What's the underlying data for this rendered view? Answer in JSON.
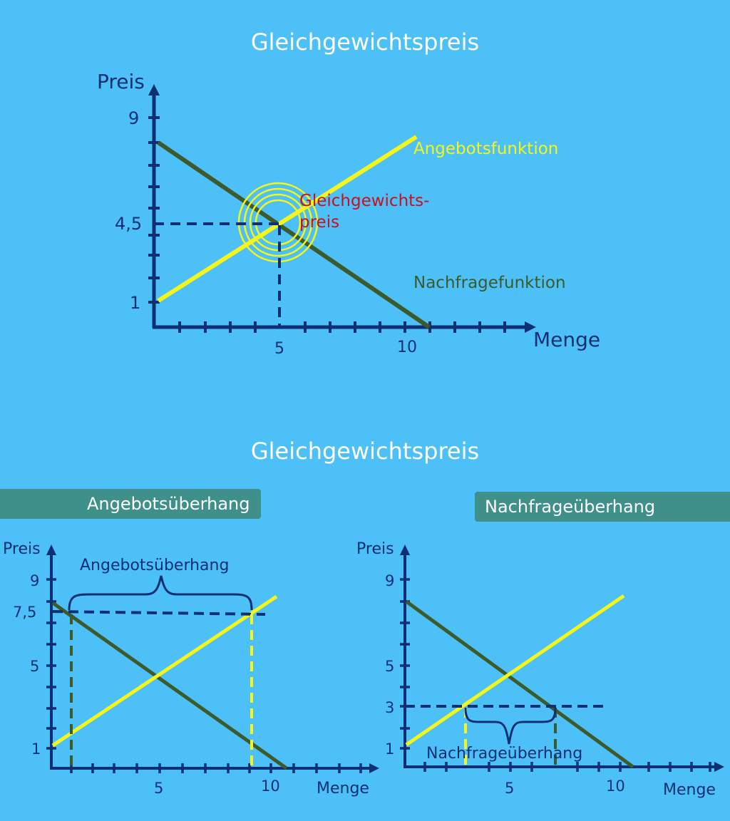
{
  "titles": {
    "top": "Gleichgewichtspreis",
    "bottom": "Gleichgewichtspreis"
  },
  "colors": {
    "background": "#4cc0f7",
    "axis": "#0e2f74",
    "supply": "#f5f51a",
    "demand": "#3c5a2b",
    "equilibrium": "#c8111c",
    "tag": "#3f8f8a"
  },
  "tags": {
    "left": "Angebotsüberhang",
    "right": "Nachfrageüberhang"
  },
  "top_chart": {
    "ylabel": "Preis",
    "xlabel": "Menge",
    "yticks": [
      "9",
      "4,5",
      "1"
    ],
    "xticks": [
      "5",
      "10"
    ],
    "supply_label": "Angebotsfunktion",
    "demand_label": "Nachfragefunktion",
    "equilibrium_label_1": "Gleichgewichts-",
    "equilibrium_label_2": "preis"
  },
  "left_chart": {
    "ylabel": "Preis",
    "xlabel": "Menge",
    "yticks": [
      "9",
      "7,5",
      "5",
      "1"
    ],
    "xticks": [
      "5",
      "10"
    ],
    "brace_label": "Angebotsüberhang"
  },
  "right_chart": {
    "ylabel": "Preis",
    "xlabel": "Menge",
    "yticks": [
      "9",
      "5",
      "3",
      "1"
    ],
    "xticks": [
      "5",
      "10"
    ],
    "brace_label": "Nachfrageüberhang"
  }
}
